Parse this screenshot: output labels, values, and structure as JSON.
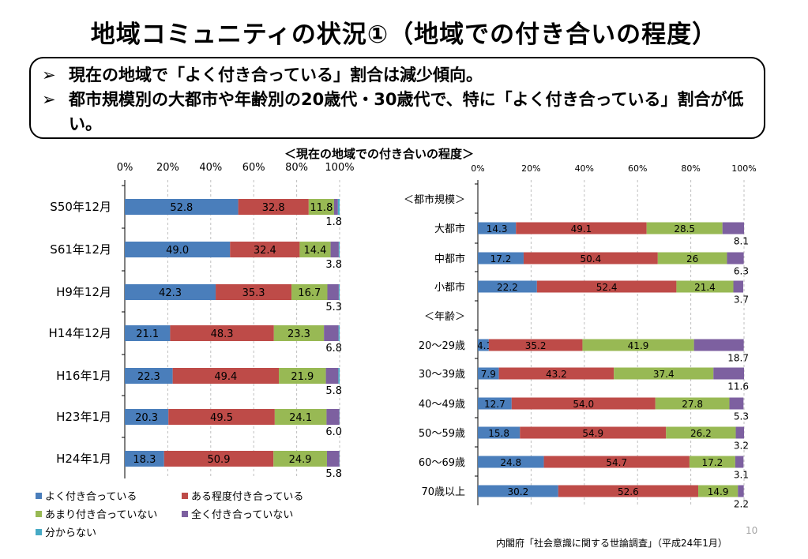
{
  "title": "地域コミュニティの状況①（地域での付き合いの程度）",
  "summary": {
    "line1": "現在の地域で「よく付き合っている」割合は減少傾向。",
    "line2": "都市規模別の大都市や年齢別の20歳代・30歳代で、特に「よく付き合っている」割合が低い。"
  },
  "subtitle": "＜現在の地域での付き合いの程度＞",
  "colors": [
    "#4a7ebb",
    "#be4b48",
    "#98b954",
    "#7d60a0",
    "#46aac5"
  ],
  "legend": [
    "よく付き合っている",
    "ある程度付き合っている",
    "あまり付き合っていない",
    "全く付き合っていない",
    "分からない"
  ],
  "chart_data": [
    {
      "type": "bar",
      "orientation": "horizontal",
      "stacked": true,
      "categories": [
        "S50年12月",
        "S61年12月",
        "H9年12月",
        "H14年12月",
        "H16年1月",
        "H23年1月",
        "H24年1月"
      ],
      "xlim": [
        0,
        100
      ],
      "xticks": [
        "0%",
        "20%",
        "40%",
        "60%",
        "80%",
        "100%"
      ],
      "series": [
        {
          "name": "よく付き合っている",
          "values": [
            52.8,
            49.0,
            42.3,
            21.1,
            22.3,
            20.3,
            18.3
          ],
          "labels": [
            "52.8",
            "49.0",
            "42.3",
            "21.1",
            "22.3",
            "20.3",
            "18.3"
          ]
        },
        {
          "name": "ある程度付き合っている",
          "values": [
            32.8,
            32.4,
            35.3,
            48.3,
            49.4,
            49.5,
            50.9
          ],
          "labels": [
            "32.8",
            "32.4",
            "35.3",
            "48.3",
            "49.4",
            "49.5",
            "50.9"
          ]
        },
        {
          "name": "あまり付き合っていない",
          "values": [
            11.8,
            14.4,
            16.7,
            23.3,
            21.9,
            24.1,
            24.9
          ],
          "labels": [
            "11.8",
            "14.4",
            "16.7",
            "23.3",
            "21.9",
            "24.1",
            "24.9"
          ]
        },
        {
          "name": "全く付き合っていない",
          "values": [
            1.8,
            3.8,
            5.3,
            6.8,
            5.8,
            6.0,
            5.8
          ],
          "labels": [
            "1.8",
            "3.8",
            "5.3",
            "6.8",
            "5.8",
            "6.0",
            "5.8"
          ]
        },
        {
          "name": "分からない",
          "values": [
            0.8,
            0.4,
            0.4,
            0.5,
            0.6,
            0.1,
            0.1
          ],
          "labels": [
            "",
            "",
            "",
            "",
            "",
            "",
            ""
          ]
        }
      ]
    },
    {
      "type": "bar",
      "orientation": "horizontal",
      "stacked": true,
      "xlim": [
        0,
        100
      ],
      "xticks": [
        "0%",
        "20%",
        "40%",
        "60%",
        "80%",
        "100%"
      ],
      "categories": [
        "＜都市規模＞",
        "大都市",
        "中都市",
        "小都市",
        "＜年齢＞",
        "20～29歳",
        "30～39歳",
        "40～49歳",
        "50～59歳",
        "60～69歳",
        "70歳以上"
      ],
      "series": [
        {
          "name": "よく付き合っている",
          "values": [
            null,
            14.3,
            17.2,
            22.2,
            null,
            4.1,
            7.9,
            12.7,
            15.8,
            24.8,
            30.2
          ],
          "labels": [
            "",
            "14.3",
            "17.2",
            "22.2",
            "",
            "4.1",
            "7.9",
            "12.7",
            "15.8",
            "24.8",
            "30.2"
          ]
        },
        {
          "name": "ある程度付き合っている",
          "values": [
            null,
            49.1,
            50.4,
            52.4,
            null,
            35.2,
            43.2,
            54.0,
            54.9,
            54.7,
            52.6
          ],
          "labels": [
            "",
            "49.1",
            "50.4",
            "52.4",
            "",
            "35.2",
            "43.2",
            "54.0",
            "54.9",
            "54.7",
            "52.6"
          ]
        },
        {
          "name": "あまり付き合っていない",
          "values": [
            null,
            28.5,
            26,
            21.4,
            null,
            41.9,
            37.4,
            27.8,
            26.2,
            17.2,
            14.9
          ],
          "labels": [
            "",
            "28.5",
            "26",
            "21.4",
            "",
            "41.9",
            "37.4",
            "27.8",
            "26.2",
            "17.2",
            "14.9"
          ]
        },
        {
          "name": "全く付き合っていない",
          "values": [
            null,
            8.1,
            6.3,
            3.7,
            null,
            18.7,
            11.6,
            5.3,
            3.2,
            3.1,
            2.2
          ],
          "labels": [
            "",
            "8.1",
            "6.3",
            "3.7",
            "",
            "18.7",
            "11.6",
            "5.3",
            "3.2",
            "3.1",
            "2.2"
          ]
        }
      ]
    }
  ],
  "page_number": "10",
  "source": "内閣府「社会意識に関する世論調査」（平成24年1月）"
}
